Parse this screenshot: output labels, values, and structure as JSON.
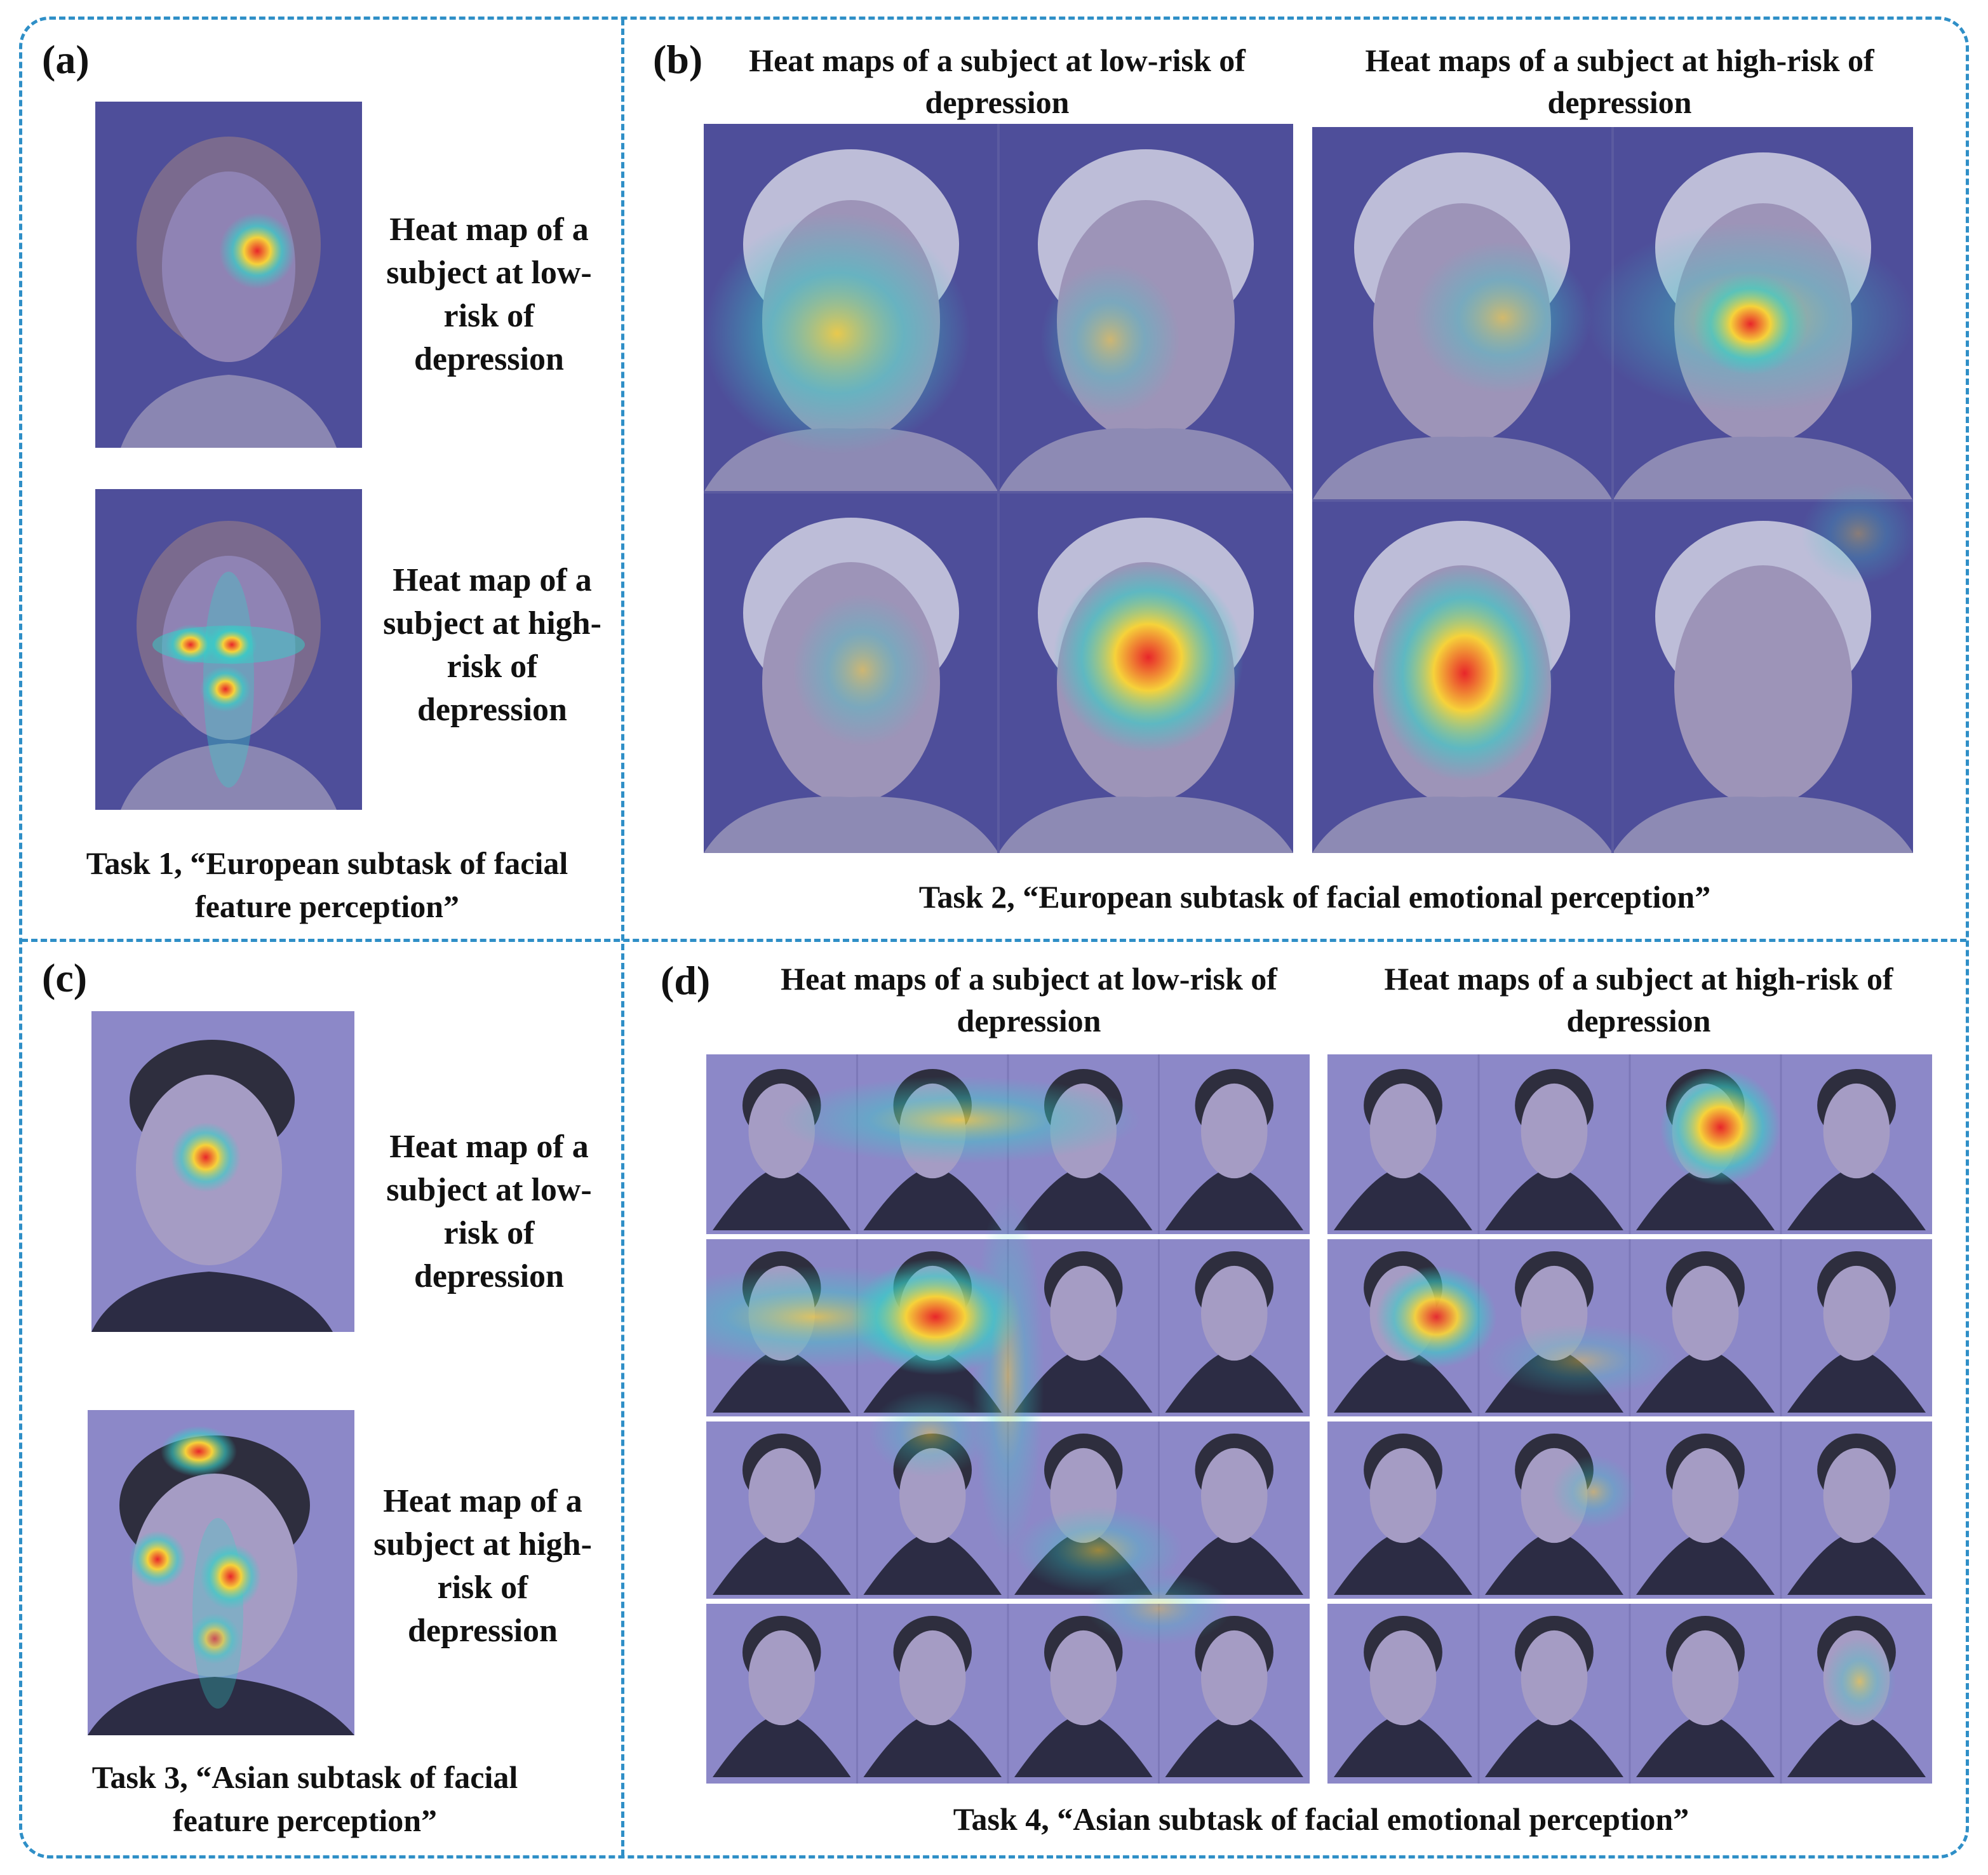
{
  "panels": {
    "a": {
      "label": "(a)",
      "low_text": "Heat map of a subject at low-risk of depression",
      "high_text": "Heat map of a subject at high-risk of depression",
      "caption": "Task 1, “European subtask of facial feature perception”"
    },
    "b": {
      "label": "(b)",
      "low_heading": "Heat maps of a subject at low-risk of depression",
      "high_heading": "Heat maps of a subject at high-risk of depression",
      "caption": "Task 2, “European subtask of facial emotional perception”"
    },
    "c": {
      "label": "(c)",
      "low_text": "Heat map of a subject at low-risk of depression",
      "high_text": "Heat map of a subject at high-risk of depression",
      "caption": "Task 3, “Asian subtask of facial feature perception”"
    },
    "d": {
      "label": "(d)",
      "low_heading": "Heat maps of a subject at low-risk of depression",
      "high_heading": "Heat maps of a subject at high-risk of depression",
      "caption": "Task 4, “Asian subtask of facial emotional perception”"
    }
  },
  "colors": {
    "border": "#2f8fc7",
    "photo_tint": "#4e4e9a",
    "heat_hot": "#e8262a",
    "heat_warm": "#f6d23a",
    "heat_cool": "#35d0c8"
  }
}
